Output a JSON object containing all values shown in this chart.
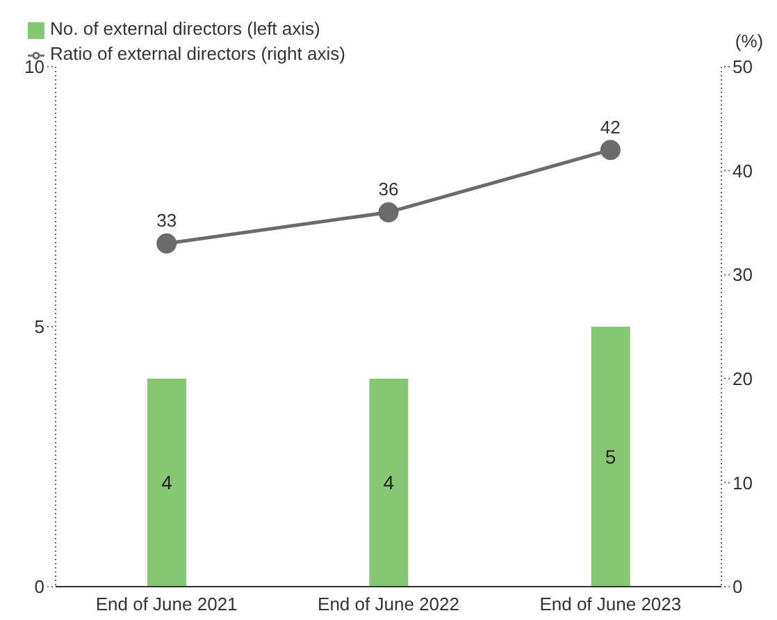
{
  "chart_data": {
    "type": "bar",
    "categories": [
      "End of June 2021",
      "End of June 2022",
      "End of June 2023"
    ],
    "series": [
      {
        "name": "No. of external directors (left axis)",
        "color": "#86c773",
        "values": [
          4,
          4,
          5
        ]
      },
      {
        "name": "Ratio of external directors (right axis)",
        "type": "line",
        "axis": "y2",
        "color": "#6b6b6b",
        "values": [
          33,
          36,
          42
        ]
      }
    ],
    "ylim": [
      0,
      10
    ],
    "yticks": [
      0,
      5,
      10
    ],
    "y2lim": [
      0,
      50
    ],
    "y2ticks": [
      0,
      10,
      20,
      30,
      40,
      50
    ],
    "y2label": "(%)",
    "data_labels": true,
    "legend": "top left",
    "marker": "circle"
  }
}
